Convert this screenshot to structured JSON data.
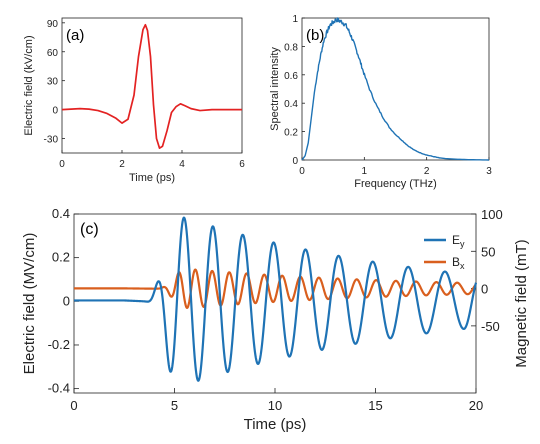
{
  "chart_data": [
    {
      "id": "a",
      "type": "line",
      "panel_label": "(a)",
      "xlabel": "Time (ps)",
      "ylabel": "Electric field (kV/cm)",
      "xlim": [
        0,
        6
      ],
      "ylim": [
        -45,
        95
      ],
      "xticks": [
        0,
        2,
        4,
        6
      ],
      "yticks": [
        -30,
        0,
        30,
        60,
        90
      ],
      "grid": false,
      "series": [
        {
          "color": "#e32222",
          "x": [
            0,
            0.3,
            0.6,
            0.9,
            1.2,
            1.5,
            1.8,
            2.0,
            2.2,
            2.4,
            2.55,
            2.7,
            2.78,
            2.85,
            2.95,
            3.05,
            3.15,
            3.25,
            3.35,
            3.5,
            3.65,
            3.8,
            3.95,
            4.1,
            4.3,
            4.6,
            5.0,
            5.5,
            6.0
          ],
          "y": [
            0,
            0.5,
            1,
            0.5,
            -1,
            -4,
            -9,
            -14,
            -10,
            15,
            55,
            83,
            88,
            82,
            55,
            5,
            -30,
            -40,
            -38,
            -22,
            -3,
            3,
            6,
            4,
            1,
            -1,
            0,
            0,
            0
          ]
        }
      ]
    },
    {
      "id": "b",
      "type": "line",
      "panel_label": "(b)",
      "xlabel": "Frequency (THz)",
      "ylabel": "Spectral intensity",
      "xlim": [
        0,
        3
      ],
      "ylim": [
        0,
        1
      ],
      "xticks": [
        0,
        1,
        2,
        3
      ],
      "yticks": [
        0,
        0.2,
        0.4,
        0.6,
        0.8,
        1
      ],
      "grid": false,
      "series": [
        {
          "color": "#1f73b5",
          "x": [
            0,
            0.05,
            0.1,
            0.15,
            0.2,
            0.25,
            0.3,
            0.35,
            0.4,
            0.45,
            0.5,
            0.55,
            0.6,
            0.65,
            0.7,
            0.75,
            0.8,
            0.85,
            0.9,
            0.95,
            1.0,
            1.1,
            1.2,
            1.3,
            1.4,
            1.5,
            1.6,
            1.7,
            1.8,
            1.9,
            2.0,
            2.1,
            2.2,
            2.3,
            2.5,
            2.7,
            3.0
          ],
          "y": [
            0,
            0.03,
            0.12,
            0.3,
            0.48,
            0.62,
            0.74,
            0.84,
            0.9,
            0.95,
            0.97,
            0.99,
            0.98,
            0.97,
            0.95,
            0.91,
            0.86,
            0.8,
            0.74,
            0.67,
            0.6,
            0.48,
            0.38,
            0.3,
            0.23,
            0.18,
            0.14,
            0.1,
            0.07,
            0.05,
            0.035,
            0.025,
            0.015,
            0.01,
            0.005,
            0.002,
            0
          ]
        }
      ]
    },
    {
      "id": "c",
      "type": "line",
      "panel_label": "(c)",
      "xlabel": "Time (ps)",
      "ylabel": "Electric field (MV/cm)",
      "y2label": "Magnetic field (mT)",
      "xlim": [
        0,
        20
      ],
      "ylim": [
        -0.42,
        0.4
      ],
      "y2lim": [
        -140,
        100
      ],
      "xticks": [
        0,
        5,
        10,
        15,
        20
      ],
      "yticks": [
        -0.4,
        -0.2,
        0,
        0.2,
        0.4
      ],
      "y2ticks": [
        -50,
        0,
        50,
        100
      ],
      "legend_position": "top-right",
      "grid": false,
      "series": [
        {
          "name": "E",
          "name_sub": "y",
          "axis": "left",
          "color": "#1f73b5",
          "model": "damped-chirp",
          "t0": 3.4,
          "amp_peak": 0.4,
          "peak_t": 5.0,
          "period_start": 1.35,
          "period_end": 1.6,
          "decay": 0.08
        },
        {
          "name": "B",
          "name_sub": "x",
          "axis": "right",
          "color": "#d95f1e",
          "model": "damped-chirp",
          "t0": 4.0,
          "amp_peak": 27,
          "peak_t": 5.4,
          "period_start": 0.8,
          "period_end": 0.92,
          "decay": 0.09
        }
      ]
    }
  ]
}
